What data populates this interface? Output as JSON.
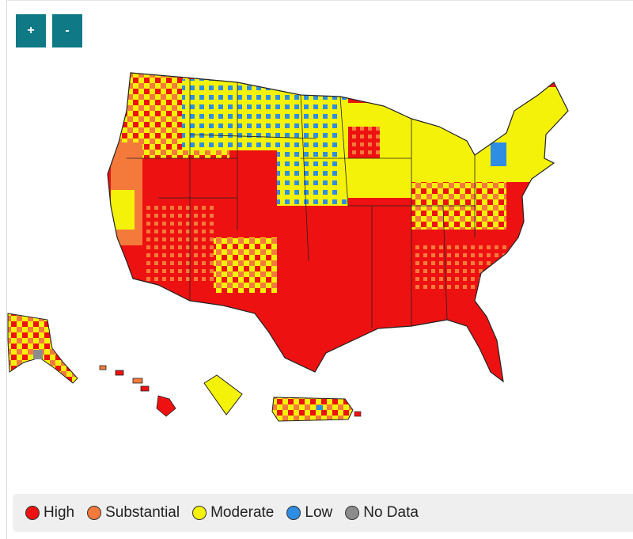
{
  "controls": {
    "zoom_in_label": "+",
    "zoom_out_label": "-"
  },
  "legend": {
    "items": [
      {
        "label": "High",
        "color": "#ee1111"
      },
      {
        "label": "Substantial",
        "color": "#f47a3b"
      },
      {
        "label": "Moderate",
        "color": "#f5f20a"
      },
      {
        "label": "Low",
        "color": "#2f8de4"
      },
      {
        "label": "No Data",
        "color": "#8c8c8c"
      }
    ]
  },
  "map": {
    "regions": [
      "contiguous-us",
      "alaska",
      "hawaii",
      "guam",
      "puerto-rico"
    ],
    "outline_color": "#222222"
  }
}
